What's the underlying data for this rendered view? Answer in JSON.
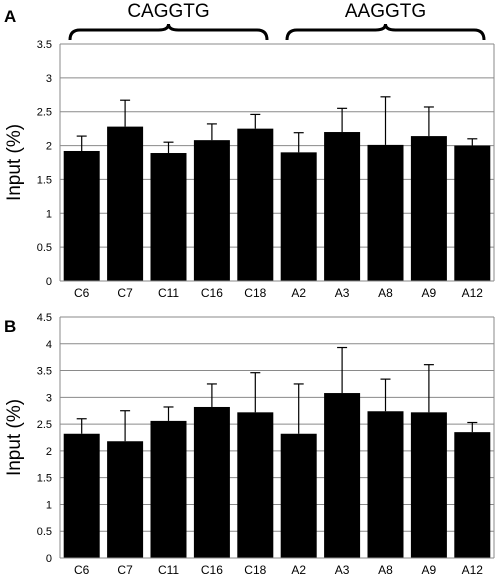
{
  "chart_data": [
    {
      "type": "bar",
      "panel_label": "A",
      "ylabel": "Input (%)",
      "ylim": [
        0,
        3.5
      ],
      "yticks": [
        "0",
        "0.5",
        "1",
        "1.5",
        "2",
        "2.5",
        "3",
        "3.5"
      ],
      "grid": true,
      "categories": [
        "C6",
        "C7",
        "C11",
        "C16",
        "C18",
        "A2",
        "A3",
        "A8",
        "A9",
        "A12"
      ],
      "values": [
        1.92,
        2.28,
        1.89,
        2.08,
        2.25,
        1.9,
        2.2,
        2.01,
        2.14,
        2.0
      ],
      "error_upper": [
        0.22,
        0.39,
        0.16,
        0.24,
        0.21,
        0.29,
        0.35,
        0.71,
        0.43,
        0.1
      ],
      "color": "#000000",
      "groups": [
        {
          "label": "CAGGTG",
          "members": [
            "C6",
            "C7",
            "C11",
            "C16",
            "C18"
          ]
        },
        {
          "label": "AAGGTG",
          "members": [
            "A2",
            "A3",
            "A8",
            "A9",
            "A12"
          ]
        }
      ]
    },
    {
      "type": "bar",
      "panel_label": "B",
      "ylabel": "Input (%)",
      "ylim": [
        0,
        4.5
      ],
      "yticks": [
        "0",
        "0.5",
        "1",
        "1.5",
        "2",
        "2.5",
        "3",
        "3.5",
        "4",
        "4.5"
      ],
      "grid": true,
      "categories": [
        "C6",
        "C7",
        "C11",
        "C16",
        "C18",
        "A2",
        "A3",
        "A8",
        "A9",
        "A12"
      ],
      "values": [
        2.32,
        2.18,
        2.56,
        2.82,
        2.72,
        2.32,
        3.08,
        2.74,
        2.72,
        2.35
      ],
      "error_upper": [
        0.28,
        0.57,
        0.26,
        0.43,
        0.74,
        0.93,
        0.85,
        0.6,
        0.89,
        0.18
      ],
      "color": "#000000"
    }
  ]
}
